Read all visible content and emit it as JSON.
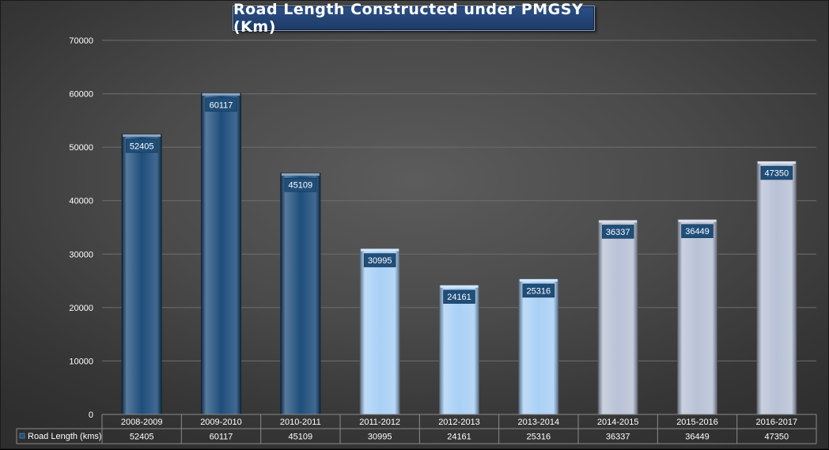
{
  "chart_data": {
    "type": "bar",
    "title": "Road Length Constructed under PMGSY (Km)",
    "categories": [
      "2008-2009",
      "2009-2010",
      "2010-2011",
      "2011-2012",
      "2012-2013",
      "2013-2014",
      "2014-2015",
      "2015-2016",
      "2016-2017"
    ],
    "series": [
      {
        "name": "Road Length (kms)",
        "values": [
          52405,
          60117,
          45109,
          30995,
          24161,
          25316,
          36337,
          36449,
          47350
        ]
      }
    ],
    "ylim": [
      0,
      70000
    ],
    "yticks": [
      0,
      10000,
      20000,
      30000,
      40000,
      50000,
      60000,
      70000
    ],
    "grid": true,
    "data_table": true,
    "colors": {
      "bar_groups": [
        "#1f4e7c",
        "#1f4e7c",
        "#1f4e7c",
        "#a9d0f5",
        "#a9d0f5",
        "#a9d0f5",
        "#b8c2d6",
        "#b8c2d6",
        "#b8c2d6"
      ],
      "label_bg": "#1f4e79",
      "legend_key": "#1f4e7c",
      "background": "#4a4a4a"
    }
  }
}
